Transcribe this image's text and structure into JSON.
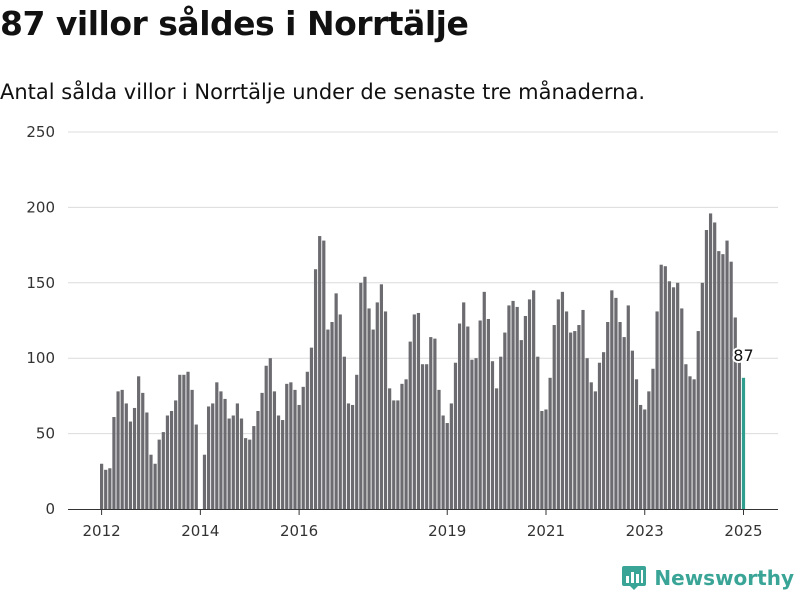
{
  "header": {
    "title": "87 villor såldes i Norrtälje",
    "subtitle": "Antal sålda villor i Norrtälje under de senaste tre månaderna."
  },
  "chart_data": {
    "type": "bar",
    "title": "87 villor såldes i Norrtälje",
    "subtitle": "Antal sålda villor i Norrtälje under de senaste tre månaderna.",
    "xlabel": "",
    "ylabel": "",
    "ylim": [
      0,
      250
    ],
    "yticks": [
      0,
      50,
      100,
      150,
      200,
      250
    ],
    "xticks": [
      "2012",
      "2014",
      "2016",
      "2019",
      "2021",
      "2023",
      "2025"
    ],
    "grid": true,
    "categories": [
      "2012-01",
      "2012-02",
      "2012-03",
      "2012-04",
      "2012-05",
      "2012-06",
      "2012-07",
      "2012-08",
      "2012-09",
      "2012-10",
      "2012-11",
      "2012-12",
      "2013-01",
      "2013-02",
      "2013-03",
      "2013-04",
      "2013-05",
      "2013-06",
      "2013-07",
      "2013-08",
      "2013-09",
      "2013-10",
      "2013-11",
      "2013-12",
      "2014-01",
      "2014-02",
      "2014-03",
      "2014-04",
      "2014-05",
      "2014-06",
      "2014-07",
      "2014-08",
      "2014-09",
      "2014-10",
      "2014-11",
      "2014-12",
      "2015-01",
      "2015-02",
      "2015-03",
      "2015-04",
      "2015-05",
      "2015-06",
      "2015-07",
      "2015-08",
      "2015-09",
      "2015-10",
      "2015-11",
      "2015-12",
      "2016-01",
      "2016-02",
      "2016-03",
      "2016-04",
      "2016-05",
      "2016-06",
      "2016-07",
      "2016-08",
      "2016-09",
      "2016-10",
      "2016-11",
      "2016-12",
      "2017-01",
      "2017-02",
      "2017-03",
      "2017-04",
      "2017-05",
      "2017-06",
      "2017-07",
      "2017-08",
      "2017-09",
      "2017-10",
      "2017-11",
      "2017-12",
      "2018-01",
      "2018-02",
      "2018-03",
      "2018-04",
      "2018-05",
      "2018-06",
      "2018-07",
      "2018-08",
      "2018-09",
      "2018-10",
      "2018-11",
      "2018-12",
      "2019-01",
      "2019-02",
      "2019-03",
      "2019-04",
      "2019-05",
      "2019-06",
      "2019-07",
      "2019-08",
      "2019-09",
      "2019-10",
      "2019-11",
      "2019-12",
      "2020-01",
      "2020-02",
      "2020-03",
      "2020-04",
      "2020-05",
      "2020-06",
      "2020-07",
      "2020-08",
      "2020-09",
      "2020-10",
      "2020-11",
      "2020-12",
      "2021-01",
      "2021-02",
      "2021-03",
      "2021-04",
      "2021-05",
      "2021-06",
      "2021-07",
      "2021-08",
      "2021-09",
      "2021-10",
      "2021-11",
      "2021-12",
      "2022-01",
      "2022-02",
      "2022-03",
      "2022-04",
      "2022-05",
      "2022-06",
      "2022-07",
      "2022-08",
      "2022-09",
      "2022-10",
      "2022-11",
      "2022-12",
      "2023-01",
      "2023-02",
      "2023-03",
      "2023-04",
      "2023-05",
      "2023-06",
      "2023-07",
      "2023-08",
      "2023-09",
      "2023-10",
      "2023-11",
      "2023-12",
      "2024-01",
      "2024-02",
      "2024-03",
      "2024-04",
      "2024-05",
      "2024-06",
      "2024-07",
      "2024-08",
      "2024-09",
      "2024-10",
      "2024-11",
      "2024-12",
      "2025-01"
    ],
    "values": [
      30,
      26,
      27,
      61,
      78,
      79,
      70,
      58,
      67,
      88,
      77,
      64,
      36,
      30,
      46,
      51,
      62,
      65,
      72,
      89,
      89,
      91,
      79,
      56,
      0,
      36,
      68,
      70,
      84,
      78,
      73,
      60,
      62,
      70,
      60,
      47,
      46,
      55,
      65,
      77,
      95,
      100,
      78,
      62,
      59,
      83,
      84,
      79,
      69,
      81,
      91,
      107,
      159,
      181,
      178,
      119,
      124,
      143,
      129,
      101,
      70,
      69,
      89,
      150,
      154,
      133,
      119,
      137,
      149,
      131,
      80,
      72,
      72,
      83,
      86,
      111,
      129,
      130,
      96,
      96,
      114,
      113,
      79,
      62,
      57,
      70,
      97,
      123,
      137,
      121,
      99,
      100,
      125,
      144,
      126,
      98,
      80,
      101,
      117,
      135,
      138,
      134,
      112,
      128,
      139,
      145,
      101,
      65,
      66,
      87,
      122,
      139,
      144,
      131,
      117,
      118,
      122,
      132,
      100,
      84,
      78,
      97,
      104,
      124,
      145,
      140,
      124,
      114,
      135,
      105,
      86,
      69,
      66,
      78,
      93,
      131,
      162,
      161,
      151,
      147,
      150,
      133,
      96,
      88,
      86,
      118,
      150,
      185,
      196,
      190,
      171,
      169,
      178,
      164,
      127,
      98,
      87
    ],
    "highlight": {
      "category": "2025-01",
      "value": 87,
      "label": "87",
      "color": "#2f9e8f"
    },
    "bar_color": "#6b6b70"
  },
  "branding": {
    "name": "Newsworthy",
    "color": "#3aa597"
  }
}
